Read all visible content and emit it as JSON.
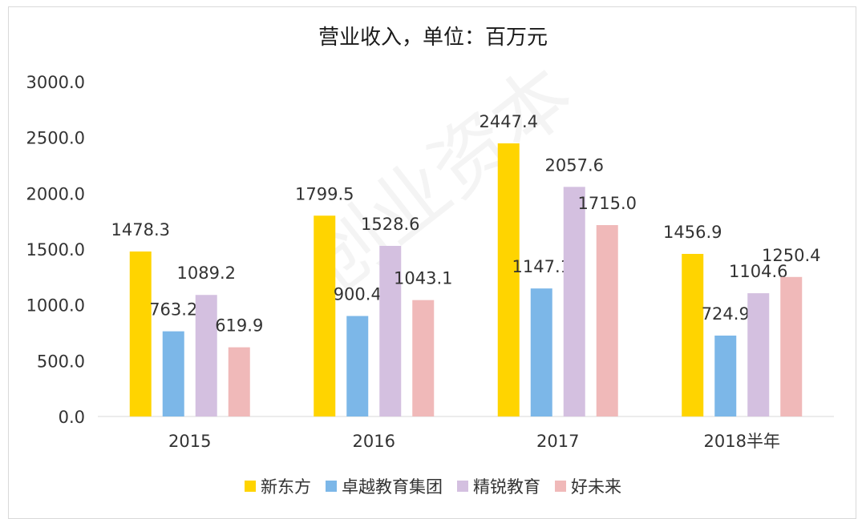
{
  "chart_data": {
    "type": "bar",
    "title": "营业收入，单位：百万元",
    "categories": [
      "2015",
      "2016",
      "2017",
      "2018半年"
    ],
    "series": [
      {
        "name": "新东方",
        "color": "#FFD400",
        "values": [
          1478.3,
          1799.5,
          2447.4,
          1456.9
        ]
      },
      {
        "name": "卓越教育集团",
        "color": "#7CB7E8",
        "values": [
          763.2,
          900.4,
          1147.1,
          724.9
        ]
      },
      {
        "name": "精锐教育",
        "color": "#D4C0E0",
        "values": [
          1089.2,
          1528.6,
          2057.6,
          1104.6
        ]
      },
      {
        "name": "好未来",
        "color": "#F0B9B9",
        "values": [
          619.9,
          1043.1,
          1715.0,
          1250.4
        ]
      }
    ],
    "ylim": [
      0,
      3000
    ],
    "yticks": [
      "0.0",
      "500.0",
      "1000.0",
      "1500.0",
      "2000.0",
      "2500.0",
      "3000.0"
    ],
    "grid": false,
    "legend": "bottom"
  },
  "watermark": "创业资本"
}
